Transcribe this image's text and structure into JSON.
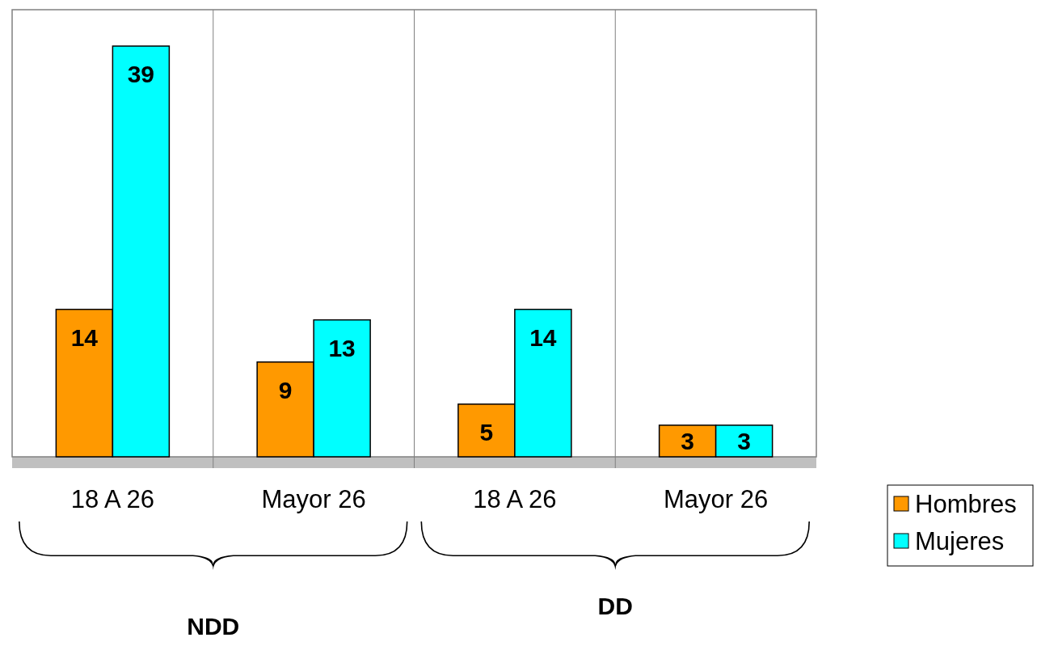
{
  "chart_data": {
    "type": "bar",
    "categories": [
      "18 A 26",
      "Mayor 26",
      "18 A 26",
      "Mayor 26"
    ],
    "series": [
      {
        "name": "Hombres",
        "color": "#ff9900",
        "values": [
          14,
          9,
          5,
          3
        ]
      },
      {
        "name": "Mujeres",
        "color": "#00ffff",
        "values": [
          39,
          13,
          14,
          3
        ]
      }
    ],
    "data_labels": true,
    "grid": "x",
    "legend": "right",
    "annotations": [
      "NDD",
      "DD"
    ]
  }
}
